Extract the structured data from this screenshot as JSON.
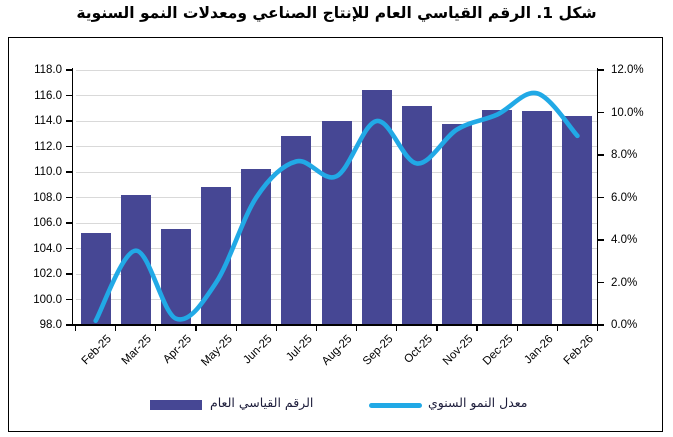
{
  "figure": {
    "title": "شكل 1. الرقم القياسي العام للإنتاج الصناعي ومعدلات النمو السنوية"
  },
  "legend": {
    "bars_label": "الرقم القياسي العام",
    "line_label": "معدل النمو السنوي"
  },
  "colors": {
    "bar": "#464794",
    "line": "#21A9E6",
    "gridline": "#D9D9D9",
    "axis": "#000000",
    "text": "#000000",
    "frame_border": "#000000",
    "background": "#FFFFFF"
  },
  "chart_data": {
    "type": "bar",
    "subtype": "combo bar+line, secondary axis for line",
    "title": "شكل 1. الرقم القياسي العام للإنتاج الصناعي ومعدلات النمو السنوية",
    "categories": [
      "Feb-25",
      "Mar-25",
      "Apr-25",
      "May-25",
      "Jun-25",
      "Jul-25",
      "Aug-25",
      "Sep-25",
      "Oct-25",
      "Nov-25",
      "Dec-25",
      "Jan-26",
      "Feb-26"
    ],
    "series": [
      {
        "name": "الرقم القياسي العام",
        "type": "bar",
        "axis": "left",
        "values": [
          105.2,
          108.2,
          105.5,
          108.8,
          110.2,
          112.8,
          114.0,
          116.4,
          115.2,
          113.8,
          114.9,
          114.8,
          114.4
        ]
      },
      {
        "name": "معدل النمو السنوي",
        "type": "line",
        "axis": "right",
        "values": [
          0.2,
          3.5,
          0.3,
          2.0,
          6.0,
          7.7,
          7.0,
          9.6,
          7.6,
          9.2,
          9.9,
          10.9,
          8.9
        ]
      }
    ],
    "left_axis": {
      "min": 98.0,
      "max": 118.0,
      "step": 2.0,
      "tick_labels": [
        "118.0",
        "116.0",
        "114.0",
        "112.0",
        "110.0",
        "108.0",
        "106.0",
        "104.0",
        "102.0",
        "100.0",
        "98.0"
      ]
    },
    "right_axis": {
      "min": 0.0,
      "max": 12.0,
      "step": 2.0,
      "tick_labels": [
        "12.0%",
        "10.0%",
        "8.0%",
        "6.0%",
        "4.0%",
        "2.0%",
        "0.0%"
      ]
    },
    "grid": true,
    "legend_position": "bottom"
  }
}
